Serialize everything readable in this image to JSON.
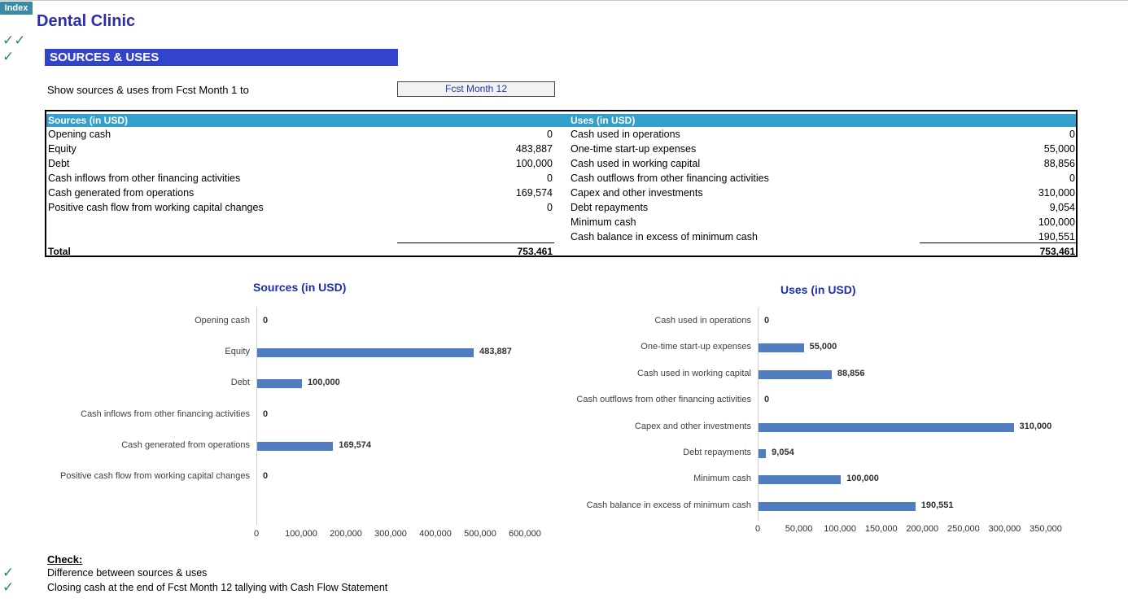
{
  "index_label": "Index",
  "title": "Dental Clinic",
  "header_checks": [
    "✓✓",
    "✓"
  ],
  "section_title": "SOURCES & USES",
  "period": {
    "label": "Show sources & uses from Fcst Month 1 to",
    "value": "Fcst Month 12"
  },
  "table": {
    "sources_header": "Sources (in USD)",
    "uses_header": "Uses (in USD)",
    "sources": [
      {
        "label": "Opening cash",
        "value": "0"
      },
      {
        "label": "Equity",
        "value": "483,887"
      },
      {
        "label": "Debt",
        "value": "100,000"
      },
      {
        "label": "Cash inflows from other financing activities",
        "value": "0"
      },
      {
        "label": "Cash generated from operations",
        "value": "169,574"
      },
      {
        "label": "Positive cash flow from working capital changes",
        "value": "0"
      }
    ],
    "uses": [
      {
        "label": "Cash used in operations",
        "value": "0"
      },
      {
        "label": "One-time start-up expenses",
        "value": "55,000"
      },
      {
        "label": "Cash used in working capital",
        "value": "88,856"
      },
      {
        "label": "Cash outflows from other financing activities",
        "value": "0"
      },
      {
        "label": "Capex and other investments",
        "value": "310,000"
      },
      {
        "label": "Debt repayments",
        "value": "9,054"
      },
      {
        "label": "Minimum cash",
        "value": "100,000"
      },
      {
        "label": "Cash balance in excess of minimum cash",
        "value": "190,551"
      }
    ],
    "total_label": "Total",
    "sources_total": "753,461",
    "uses_total": "753,461"
  },
  "chart_data": [
    {
      "type": "bar",
      "orientation": "horizontal",
      "title": "Sources (in USD)",
      "categories": [
        "Opening cash",
        "Equity",
        "Debt",
        "Cash inflows from other financing activities",
        "Cash generated from operations",
        "Positive cash flow from working capital changes"
      ],
      "values": [
        0,
        483887,
        100000,
        0,
        169574,
        0
      ],
      "value_labels": [
        "0",
        "483,887",
        "100,000",
        "0",
        "169,574",
        "0"
      ],
      "xlim": [
        0,
        600000
      ],
      "ticks": [
        "0",
        "100,000",
        "200,000",
        "300,000",
        "400,000",
        "500,000",
        "600,000"
      ],
      "color": "#4f7dc0",
      "grid": false
    },
    {
      "type": "bar",
      "orientation": "horizontal",
      "title": "Uses (in USD)",
      "categories": [
        "Cash used in operations",
        "One-time start-up expenses",
        "Cash used in working capital",
        "Cash outflows from other financing activities",
        "Capex and other investments",
        "Debt repayments",
        "Minimum cash",
        "Cash balance in excess of minimum cash"
      ],
      "values": [
        0,
        55000,
        88856,
        0,
        310000,
        9054,
        100000,
        190551
      ],
      "value_labels": [
        "0",
        "55,000",
        "88,856",
        "0",
        "310,000",
        "9,054",
        "100,000",
        "190,551"
      ],
      "xlim": [
        0,
        350000
      ],
      "ticks": [
        "0",
        "50,000",
        "100,000",
        "150,000",
        "200,000",
        "250,000",
        "300,000",
        "350,000"
      ],
      "color": "#4f7dc0",
      "grid": false
    }
  ],
  "checks": {
    "heading": "Check:",
    "items": [
      {
        "mark": "✓",
        "label": "Difference between sources & uses"
      },
      {
        "mark": "✓",
        "label": "Closing cash at the end of Fcst Month 12 tallying with Cash Flow Statement"
      }
    ]
  },
  "colors": {
    "accent_blue": "#3344cc",
    "table_header": "#33a0cc",
    "check_green": "#2e8a57",
    "bar": "#4f7dc0"
  }
}
